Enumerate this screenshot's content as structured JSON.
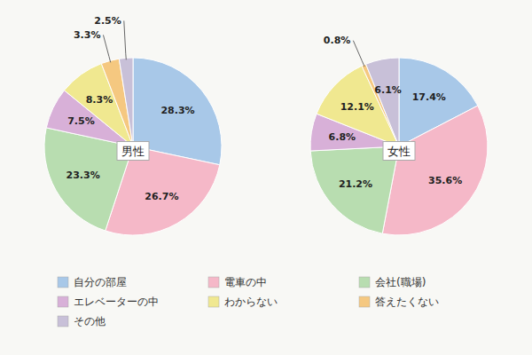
{
  "chart_data": [
    {
      "type": "pie",
      "title": "男性",
      "categories": [
        "自分の部屋",
        "電車の中",
        "会社(職場)",
        "エレベーターの中",
        "わからない",
        "答えたくない",
        "その他"
      ],
      "values": [
        28.3,
        26.7,
        23.3,
        7.5,
        8.3,
        3.3,
        2.5
      ],
      "value_labels": [
        "28.3%",
        "26.7%",
        "23.3%",
        "7.5%",
        "8.3%",
        "3.3%",
        "2.5%"
      ],
      "colors": [
        "#a8c8e8",
        "#f5b8c8",
        "#b8ddb0",
        "#d8b0d8",
        "#f0e890",
        "#f5c880",
        "#c8c0d8"
      ],
      "data_labels": true,
      "legend": "bottom"
    },
    {
      "type": "pie",
      "title": "女性",
      "categories": [
        "自分の部屋",
        "電車の中",
        "会社(職場)",
        "エレベーターの中",
        "わからない",
        "答えたくない",
        "その他"
      ],
      "values": [
        17.4,
        35.6,
        21.2,
        6.8,
        12.1,
        0.8,
        6.1
      ],
      "value_labels": [
        "17.4%",
        "35.6%",
        "21.2%",
        "6.8%",
        "12.1%",
        "0.8%",
        "6.1%"
      ],
      "colors": [
        "#a8c8e8",
        "#f5b8c8",
        "#b8ddb0",
        "#d8b0d8",
        "#f0e890",
        "#f5c880",
        "#c8c0d8"
      ],
      "data_labels": true
    }
  ]
}
